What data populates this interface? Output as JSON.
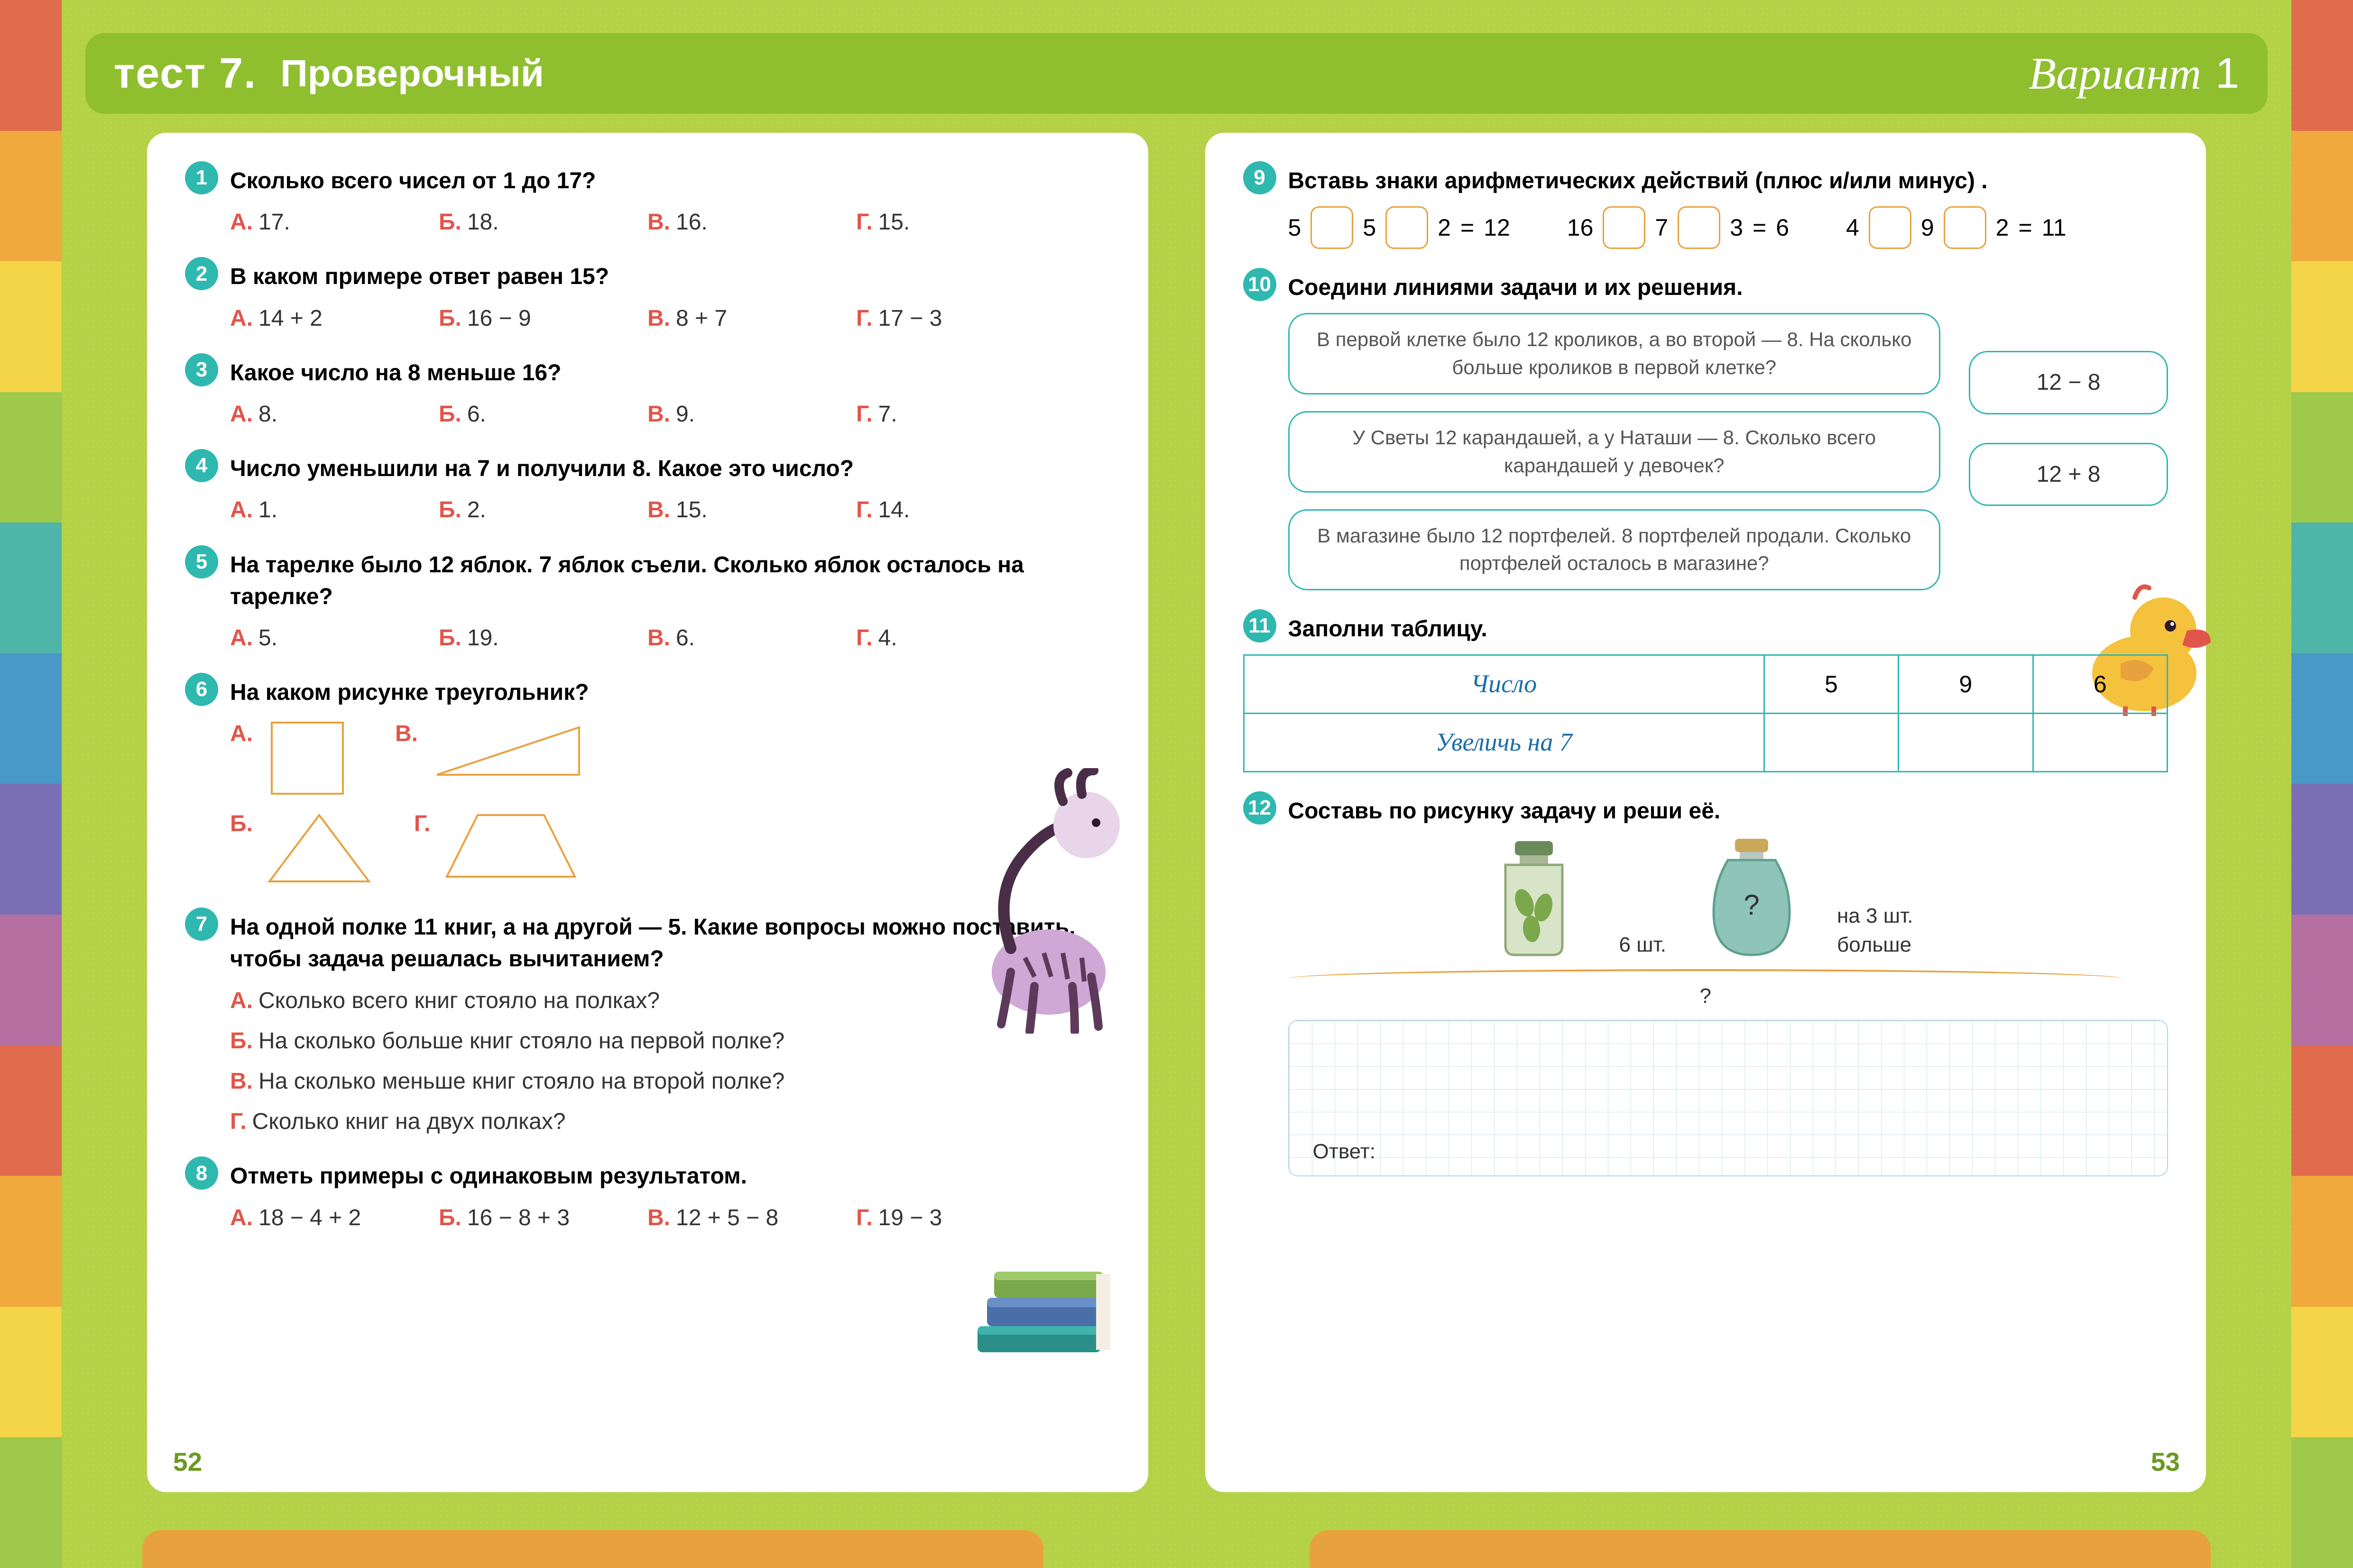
{
  "header": {
    "test_label": "тест 7.",
    "test_name": "Проверочный",
    "variant_word": "Вариант",
    "variant_num": "1"
  },
  "page_left_num": "52",
  "page_right_num": "53",
  "colors": {
    "badge": "#2fb8b0",
    "opt_letter": "#e0564b",
    "accent_orange": "#e8a23d",
    "bg_green": "#b4d147",
    "header_green": "#8fbf2f"
  },
  "stripes": [
    "#e06c4d",
    "#f0a93d",
    "#f5d548",
    "#9fc94a",
    "#4fb5a8",
    "#4a98c7",
    "#7a6fb5",
    "#b56fa0",
    "#e06c4d",
    "#f0a93d",
    "#f5d548",
    "#9fc94a"
  ],
  "questions_left": [
    {
      "n": "1",
      "text": "Сколько всего чисел от 1 до 17?",
      "opts": [
        {
          "l": "А.",
          "t": "17."
        },
        {
          "l": "Б.",
          "t": "18."
        },
        {
          "l": "В.",
          "t": "16."
        },
        {
          "l": "Г.",
          "t": "15."
        }
      ]
    },
    {
      "n": "2",
      "text": "В каком примере ответ равен 15?",
      "opts": [
        {
          "l": "А.",
          "t": "14 + 2"
        },
        {
          "l": "Б.",
          "t": "16 − 9"
        },
        {
          "l": "В.",
          "t": "8 + 7"
        },
        {
          "l": "Г.",
          "t": "17 − 3"
        }
      ]
    },
    {
      "n": "3",
      "text": "Какое число на 8 меньше 16?",
      "opts": [
        {
          "l": "А.",
          "t": "8."
        },
        {
          "l": "Б.",
          "t": "6."
        },
        {
          "l": "В.",
          "t": "9."
        },
        {
          "l": "Г.",
          "t": "7."
        }
      ]
    },
    {
      "n": "4",
      "text": "Число уменьшили на 7 и получили 8. Какое это число?",
      "opts": [
        {
          "l": "А.",
          "t": "1."
        },
        {
          "l": "Б.",
          "t": "2."
        },
        {
          "l": "В.",
          "t": "15."
        },
        {
          "l": "Г.",
          "t": "14."
        }
      ]
    },
    {
      "n": "5",
      "text": "На тарелке было 12 яблок. 7 яблок съели. Сколько яблок осталось на тарелке?",
      "opts": [
        {
          "l": "А.",
          "t": "5."
        },
        {
          "l": "Б.",
          "t": "19."
        },
        {
          "l": "В.",
          "t": "6."
        },
        {
          "l": "Г.",
          "t": "4."
        }
      ]
    },
    {
      "n": "6",
      "text": "На каком рисунке треугольник?",
      "shapes": [
        {
          "l": "А.",
          "shape": "square"
        },
        {
          "l": "В.",
          "shape": "rtri"
        },
        {
          "l": "Б.",
          "shape": "tri"
        },
        {
          "l": "Г.",
          "shape": "trap"
        }
      ]
    },
    {
      "n": "7",
      "text": "На одной полке 11 книг, а на другой — 5. Какие вопросы можно поставить, чтобы задача решалась вычитанием?",
      "opts_col": [
        {
          "l": "А.",
          "t": "Сколько всего книг стояло на полках?"
        },
        {
          "l": "Б.",
          "t": "На сколько больше книг стояло на первой полке?"
        },
        {
          "l": "В.",
          "t": "На сколько меньше книг стояло на второй полке?"
        },
        {
          "l": "Г.",
          "t": "Сколько книг на двух полках?"
        }
      ]
    },
    {
      "n": "8",
      "text": "Отметь примеры с одинаковым результатом.",
      "opts": [
        {
          "l": "А.",
          "t": "18 − 4 + 2"
        },
        {
          "l": "Б.",
          "t": "16 − 8 + 3"
        },
        {
          "l": "В.",
          "t": "12 + 5 − 8"
        },
        {
          "l": "Г.",
          "t": "19 − 3"
        }
      ]
    }
  ],
  "q9": {
    "n": "9",
    "text": "Вставь знаки арифметических действий (плюс и/или минус) .",
    "eqs": [
      [
        "5",
        "□",
        "5",
        "□",
        "2",
        "=",
        "12"
      ],
      [
        "16",
        "□",
        "7",
        "□",
        "3",
        "=",
        "6"
      ],
      [
        "4",
        "□",
        "9",
        "□",
        "2",
        "=",
        "11"
      ]
    ]
  },
  "q10": {
    "n": "10",
    "text": "Соедини линиями задачи и их решения.",
    "tasks": [
      "В первой клетке было 12 кроликов, а во второй — 8. На сколько больше кроликов в первой клетке?",
      "У Светы 12 карандашей, а у Наташи — 8. Сколько всего карандашей у девочек?",
      "В магазине было 12 портфелей. 8 портфелей продали. Сколько портфелей осталось в магазине?"
    ],
    "answers": [
      "12 − 8",
      "12 + 8"
    ]
  },
  "q11": {
    "n": "11",
    "text": "Заполни таблицу.",
    "row1_label": "Число",
    "row1": [
      "5",
      "9",
      "6"
    ],
    "row2_label": "Увеличь на 7",
    "row2": [
      "",
      "",
      ""
    ]
  },
  "q12": {
    "n": "12",
    "text": "Составь по рисунку задачу и реши её.",
    "jar1_label": "6 шт.",
    "jar2_q": "?",
    "jar2_label": "на 3 шт. больше",
    "total_q": "?",
    "answer_label": "Ответ:"
  }
}
